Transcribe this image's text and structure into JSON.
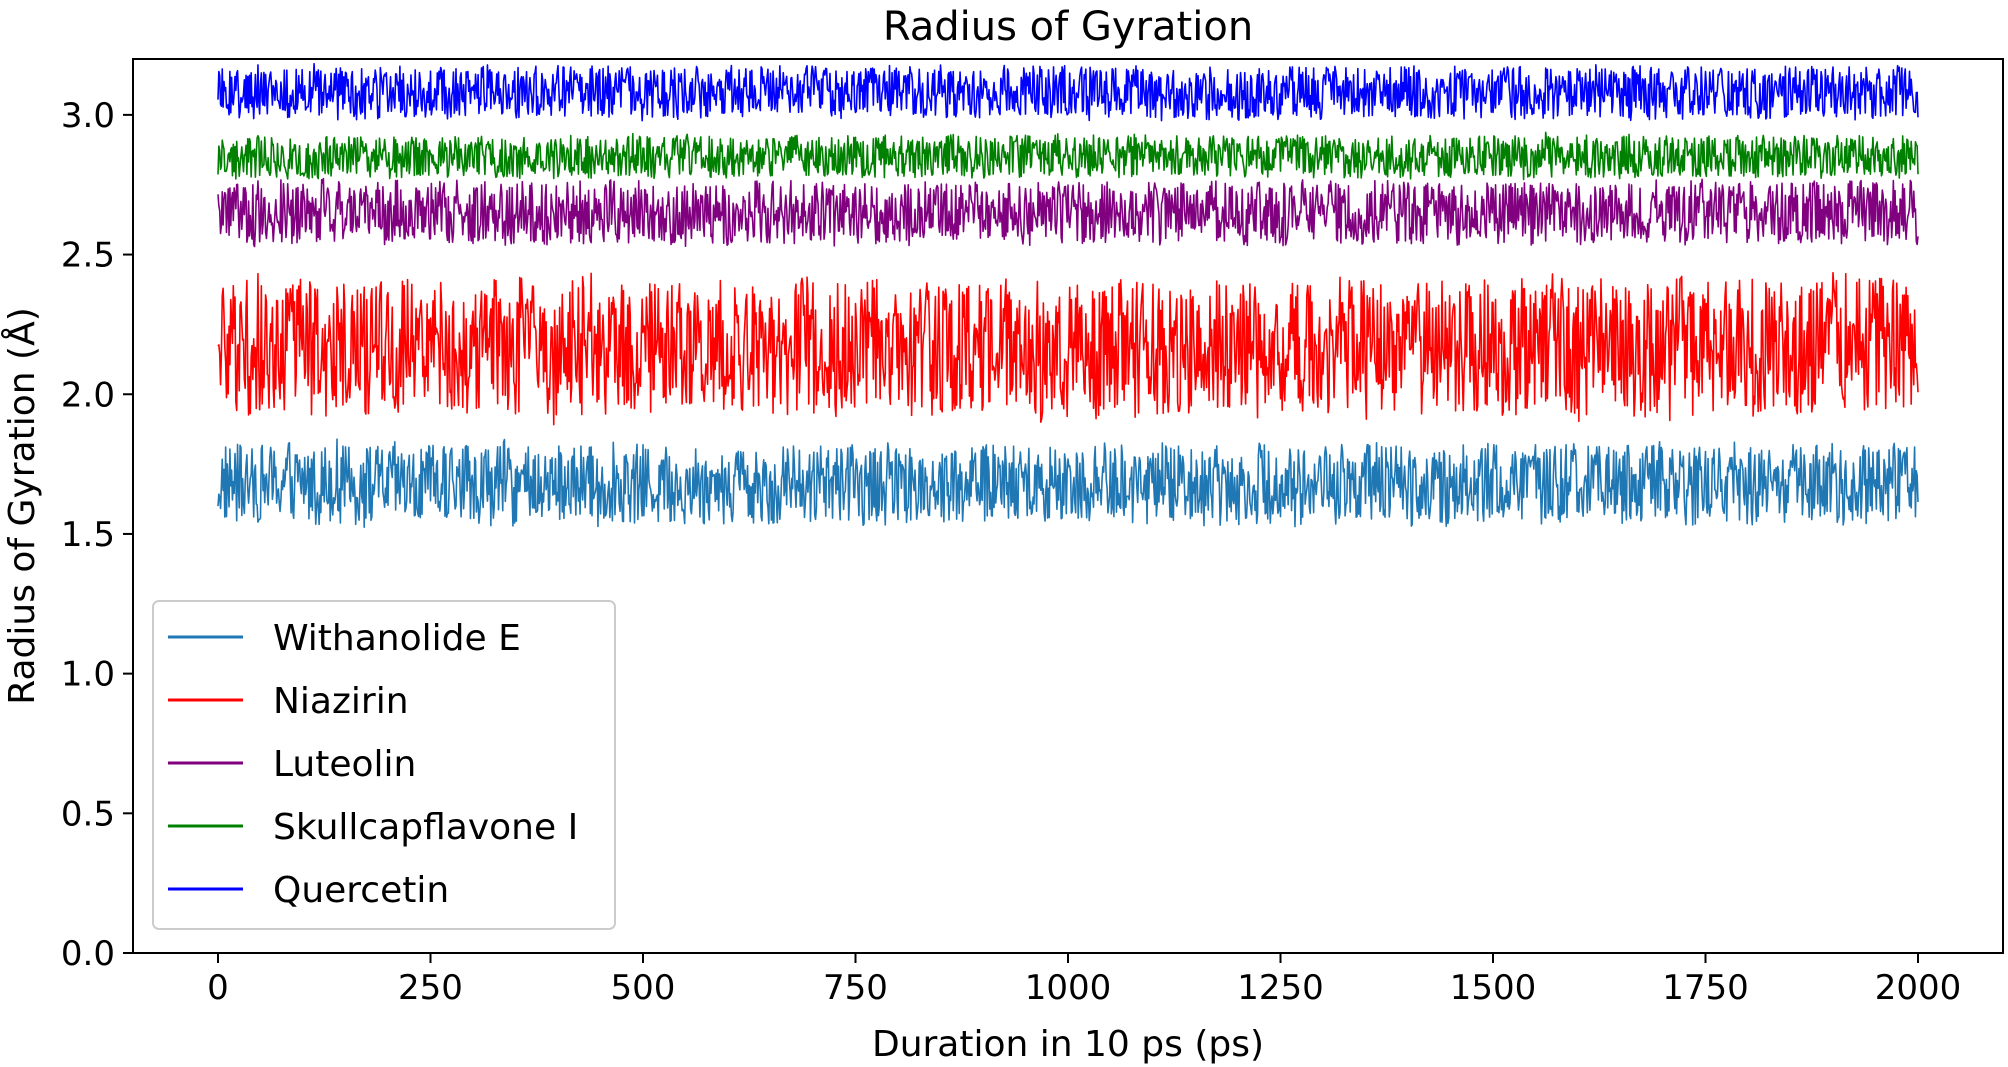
{
  "chart_data": {
    "type": "line",
    "title": "Radius of Gyration",
    "xlabel": "Duration in 10 ps (ps)",
    "ylabel": "Radius of Gyration (Å)",
    "xlim": [
      -100,
      2100
    ],
    "ylim": [
      0.0,
      3.2
    ],
    "x_range": [
      0,
      2000
    ],
    "xticks": [
      0,
      250,
      500,
      750,
      1000,
      1250,
      1500,
      1750,
      2000
    ],
    "xtick_labels": [
      "0",
      "250",
      "500",
      "750",
      "1000",
      "1250",
      "1500",
      "1750",
      "2000"
    ],
    "yticks": [
      0.0,
      0.5,
      1.0,
      1.5,
      2.0,
      2.5,
      3.0
    ],
    "ytick_labels": [
      "0.0",
      "0.5",
      "1.0",
      "1.5",
      "2.0",
      "2.5",
      "3.0"
    ],
    "grid": false,
    "legend_position": "lower-left",
    "series": [
      {
        "name": "Withanolide E",
        "color": "#1f77b4",
        "min": 1.5,
        "max": 1.88,
        "mean": 1.68
      },
      {
        "name": "Niazirin",
        "color": "#ff0000",
        "min": 1.85,
        "max": 2.5,
        "mean": 2.17
      },
      {
        "name": "Luteolin",
        "color": "#800080",
        "min": 2.5,
        "max": 2.8,
        "mean": 2.65
      },
      {
        "name": "Skullcapflavone I",
        "color": "#008000",
        "min": 2.75,
        "max": 2.95,
        "mean": 2.85
      },
      {
        "name": "Quercetin",
        "color": "#0000ff",
        "min": 2.95,
        "max": 3.2,
        "mean": 3.08
      }
    ]
  }
}
